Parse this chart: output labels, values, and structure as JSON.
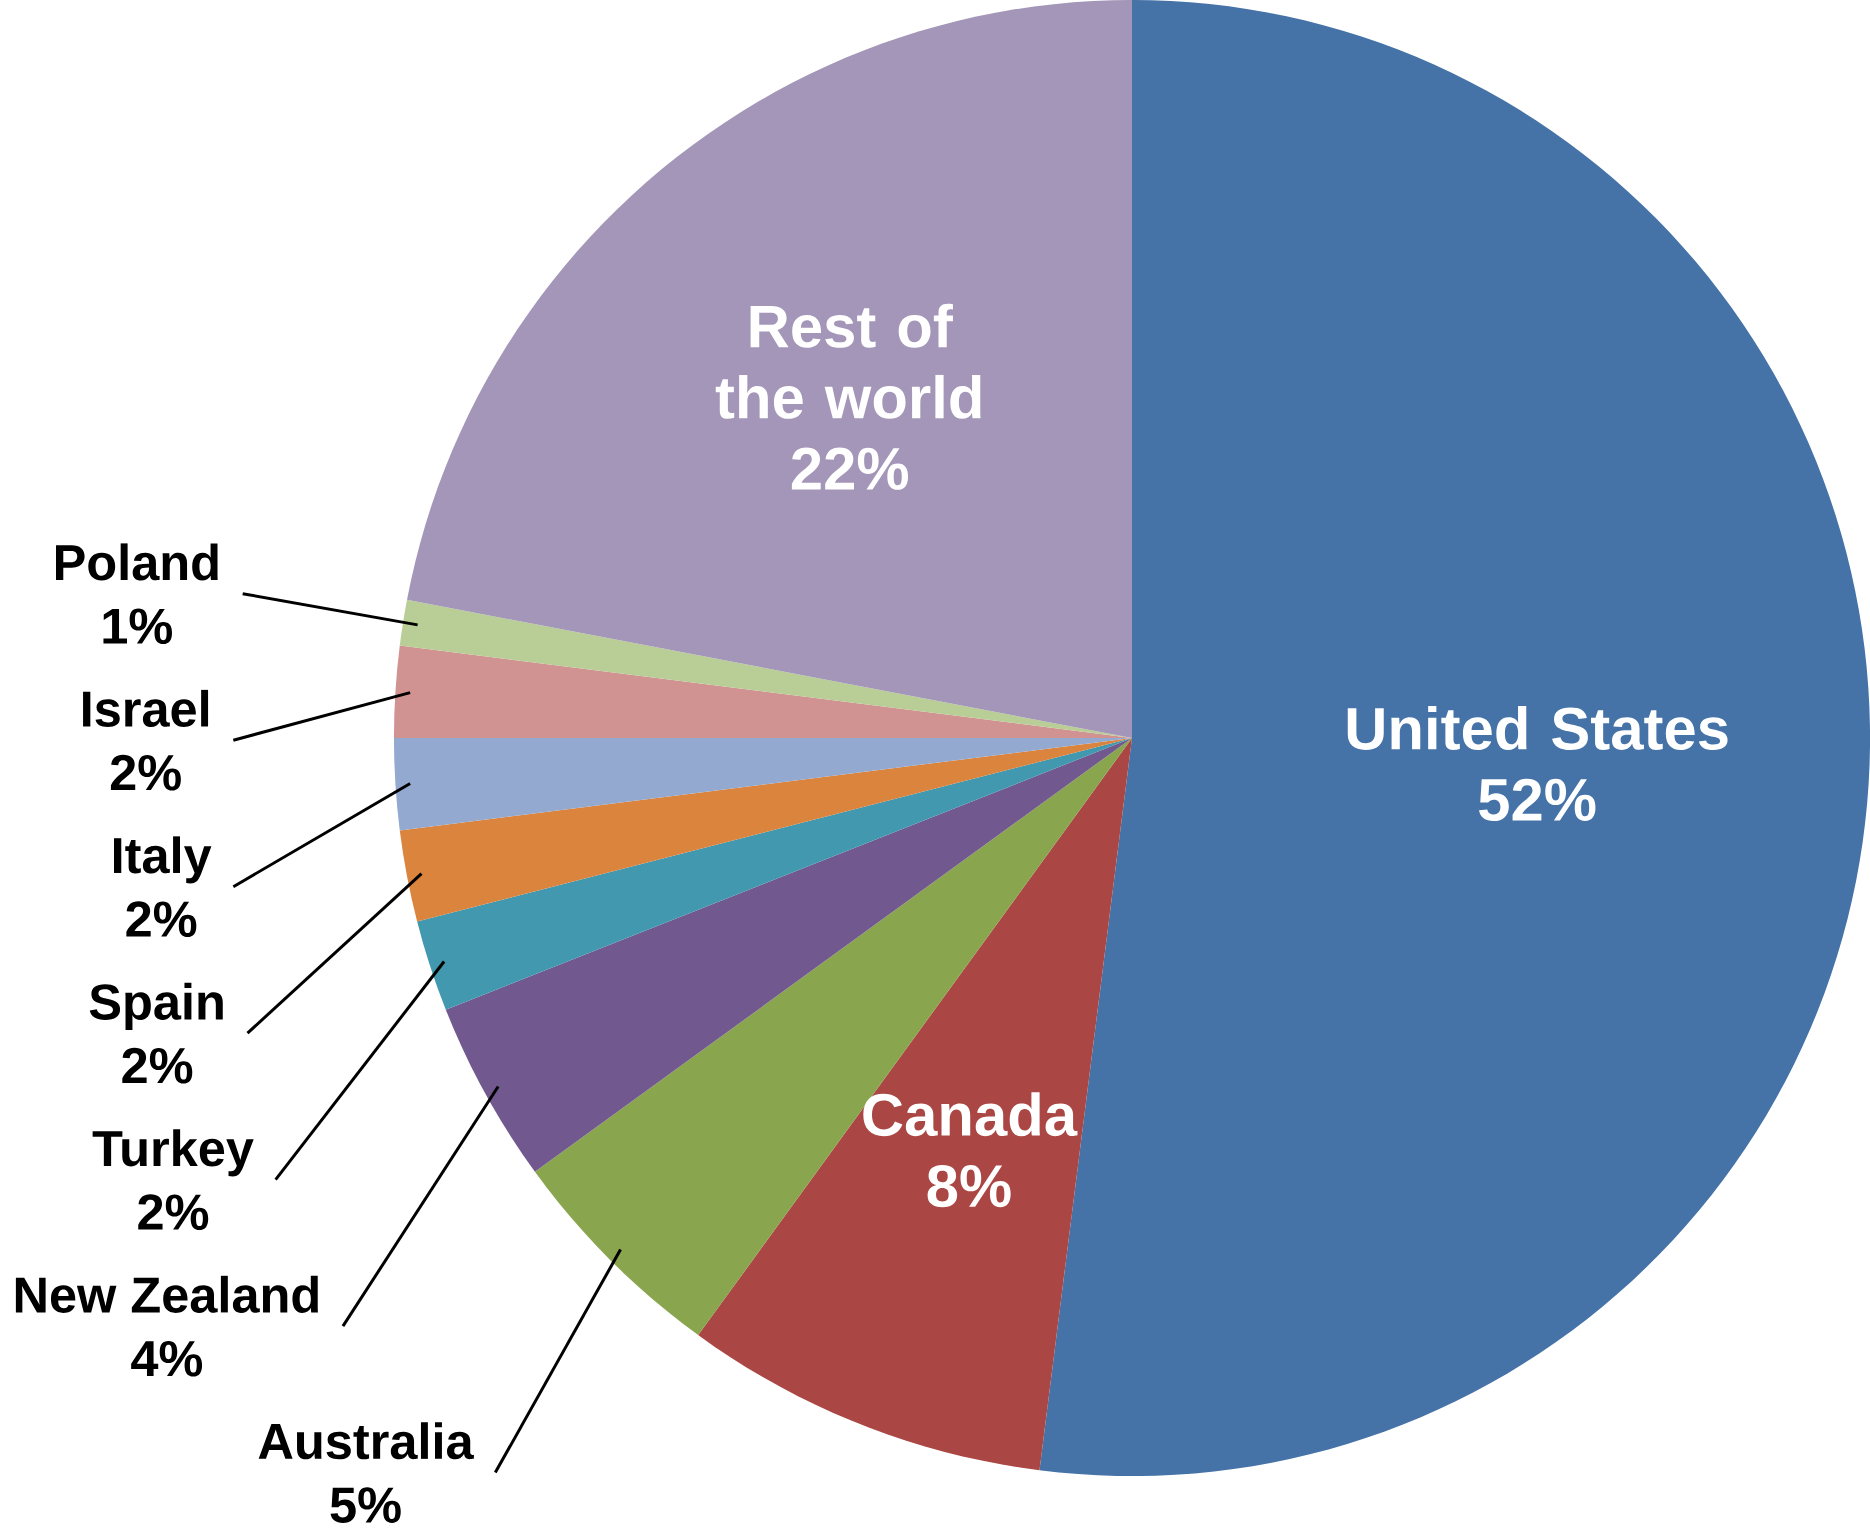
{
  "chart_data": {
    "type": "pie",
    "categories": [
      "United States",
      "Canada",
      "Australia",
      "New Zealand",
      "Turkey",
      "Spain",
      "Italy",
      "Israel",
      "Poland",
      "Rest of the world"
    ],
    "values": [
      52,
      8,
      5,
      4,
      2,
      2,
      2,
      2,
      1,
      22
    ],
    "value_labels": [
      "52%",
      "8%",
      "5%",
      "4%",
      "2%",
      "2%",
      "2%",
      "2%",
      "1%",
      "22%"
    ],
    "colors": [
      "#4572a7",
      "#aa4643",
      "#89a54e",
      "#71588f",
      "#4198af",
      "#db843d",
      "#93a9cf",
      "#d19392",
      "#b9cd96",
      "#a396b8"
    ]
  }
}
